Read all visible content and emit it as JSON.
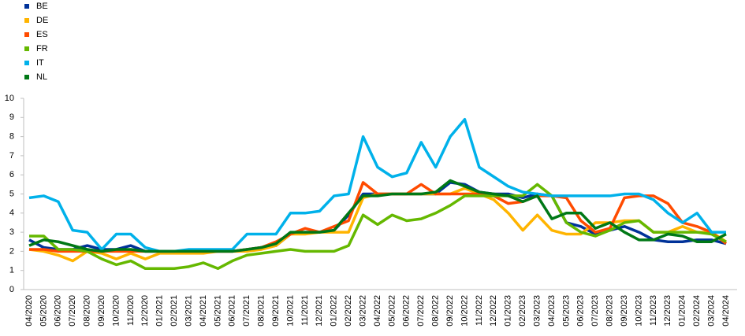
{
  "chart_data": {
    "type": "line",
    "categories": [
      "04/2020",
      "05/2020",
      "06/2020",
      "07/2020",
      "08/2020",
      "09/2020",
      "10/2020",
      "11/2020",
      "12/2020",
      "01/2021",
      "02/2021",
      "03/2021",
      "04/2021",
      "05/2021",
      "06/2021",
      "07/2021",
      "08/2021",
      "09/2021",
      "10/2021",
      "11/2021",
      "12/2021",
      "01/2022",
      "02/2022",
      "03/2022",
      "04/2022",
      "05/2022",
      "06/2022",
      "07/2022",
      "08/2022",
      "09/2022",
      "10/2022",
      "11/2022",
      "12/2022",
      "01/2023",
      "02/2023",
      "03/2023",
      "04/2023",
      "05/2023",
      "06/2023",
      "07/2023",
      "08/2023",
      "09/2023",
      "10/2023",
      "11/2023",
      "12/2023",
      "01/2024",
      "02/2024",
      "03/2024",
      "04/2024"
    ],
    "series": [
      {
        "name": "BE",
        "color": "#003299",
        "values": [
          2.6,
          2.2,
          2.1,
          2.1,
          2.3,
          2.1,
          2.1,
          2.3,
          2.0,
          2.0,
          2.0,
          2.0,
          2.0,
          2.0,
          2.0,
          2.1,
          2.2,
          2.3,
          2.9,
          3.0,
          3.0,
          3.1,
          3.9,
          5.0,
          5.0,
          5.0,
          5.0,
          5.0,
          5.0,
          5.6,
          5.5,
          5.1,
          5.0,
          5.0,
          4.8,
          5.0,
          4.9,
          3.5,
          3.3,
          2.9,
          3.1,
          3.3,
          3.0,
          2.6,
          2.5,
          2.5,
          2.6,
          2.6,
          2.4
        ]
      },
      {
        "name": "DE",
        "color": "#ffb400",
        "values": [
          2.1,
          2.0,
          1.8,
          1.5,
          2.0,
          1.9,
          1.6,
          1.9,
          1.6,
          1.9,
          1.9,
          1.9,
          1.9,
          2.0,
          2.0,
          2.0,
          2.1,
          2.3,
          2.9,
          2.9,
          3.0,
          3.0,
          3.0,
          4.8,
          5.0,
          5.0,
          5.0,
          5.0,
          5.0,
          5.0,
          5.3,
          5.0,
          4.7,
          4.0,
          3.1,
          3.9,
          3.1,
          2.9,
          2.9,
          3.5,
          3.5,
          3.6,
          3.6,
          3.0,
          3.0,
          3.3,
          3.0,
          3.0,
          2.5
        ]
      },
      {
        "name": "ES",
        "color": "#ff4b00",
        "values": [
          2.1,
          2.1,
          2.0,
          2.0,
          2.0,
          2.0,
          2.0,
          2.0,
          2.0,
          2.0,
          2.0,
          2.0,
          2.0,
          2.0,
          2.0,
          2.1,
          2.2,
          2.5,
          2.9,
          3.2,
          3.0,
          3.3,
          3.6,
          5.6,
          5.0,
          5.0,
          5.0,
          5.5,
          5.0,
          5.0,
          5.0,
          5.0,
          4.9,
          4.5,
          4.6,
          4.9,
          4.9,
          4.8,
          3.6,
          3.0,
          3.2,
          4.8,
          4.9,
          4.9,
          4.5,
          3.5,
          3.3,
          3.0,
          2.4
        ]
      },
      {
        "name": "FR",
        "color": "#65b800",
        "values": [
          2.8,
          2.8,
          2.1,
          2.1,
          2.0,
          1.6,
          1.3,
          1.5,
          1.1,
          1.1,
          1.1,
          1.2,
          1.4,
          1.1,
          1.5,
          1.8,
          1.9,
          2.0,
          2.1,
          2.0,
          2.0,
          2.0,
          2.3,
          3.9,
          3.4,
          3.9,
          3.6,
          3.7,
          4.0,
          4.4,
          4.9,
          4.9,
          4.9,
          4.9,
          4.9,
          5.5,
          4.9,
          3.5,
          3.0,
          2.8,
          3.1,
          3.5,
          3.6,
          3.0,
          3.0,
          3.0,
          3.0,
          2.9,
          2.5
        ]
      },
      {
        "name": "IT",
        "color": "#00b1ea",
        "values": [
          4.8,
          4.9,
          4.6,
          3.1,
          3.0,
          2.1,
          2.9,
          2.9,
          2.2,
          2.0,
          2.0,
          2.1,
          2.1,
          2.1,
          2.1,
          2.9,
          2.9,
          2.9,
          4.0,
          4.0,
          4.1,
          4.9,
          5.0,
          8.0,
          6.4,
          5.9,
          6.1,
          7.7,
          6.4,
          8.0,
          8.9,
          6.4,
          5.9,
          5.4,
          5.1,
          5.0,
          4.9,
          4.9,
          4.9,
          4.9,
          4.9,
          5.0,
          5.0,
          4.7,
          4.0,
          3.5,
          4.0,
          3.0,
          3.0
        ]
      },
      {
        "name": "NL",
        "color": "#007816",
        "values": [
          2.3,
          2.6,
          2.5,
          2.3,
          2.1,
          2.0,
          2.1,
          2.1,
          2.0,
          2.0,
          2.0,
          2.0,
          2.0,
          2.0,
          2.0,
          2.1,
          2.2,
          2.4,
          3.0,
          3.0,
          3.0,
          3.1,
          4.0,
          4.9,
          4.9,
          5.0,
          5.0,
          5.0,
          5.1,
          5.7,
          5.4,
          5.1,
          5.0,
          4.9,
          4.6,
          4.9,
          3.7,
          4.0,
          4.0,
          3.2,
          3.5,
          3.0,
          2.6,
          2.6,
          2.9,
          2.8,
          2.5,
          2.5,
          2.9
        ]
      }
    ],
    "ylim": [
      0,
      10
    ],
    "yticks": [
      0,
      1,
      2,
      3,
      4,
      5,
      6,
      7,
      8,
      9,
      10
    ],
    "grid": false
  }
}
